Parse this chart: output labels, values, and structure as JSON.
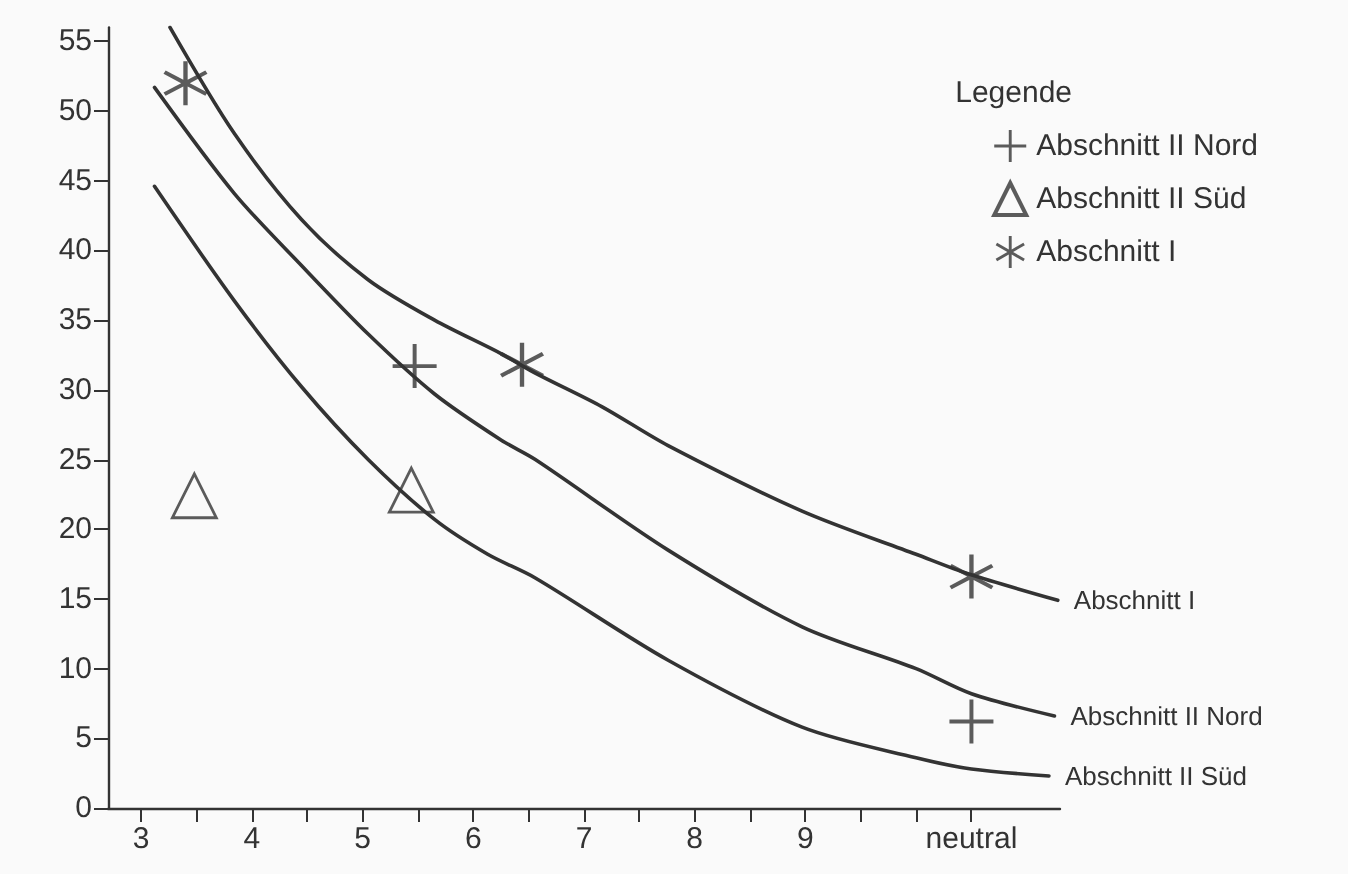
{
  "chart_data": {
    "type": "scatter",
    "legend_title": "Legende",
    "legend": "top right",
    "grid": false,
    "xlim": [
      2.7,
      11.3
    ],
    "ylim": [
      0,
      56
    ],
    "xticks": [
      3,
      {
        "value": 3.5,
        "label": null
      },
      4,
      {
        "value": 4.5,
        "label": null
      },
      5,
      {
        "value": 5.5,
        "label": null
      },
      6,
      {
        "value": 6.5,
        "label": null
      },
      7,
      {
        "value": 7.5,
        "label": null
      },
      8,
      {
        "value": 8.5,
        "label": null
      },
      9,
      {
        "value": 9.5,
        "label": null
      },
      {
        "value": 10,
        "label": null
      },
      {
        "value": 10.5,
        "label": "neutral"
      }
    ],
    "yticks": [
      0,
      5,
      10,
      15,
      20,
      25,
      30,
      35,
      40,
      45,
      50,
      55
    ],
    "series": [
      {
        "name": "Abschnitt II Nord",
        "marker": "cross",
        "color": "#333333",
        "x": [
          5.47,
          10.5
        ],
        "values": [
          31.7,
          6.2
        ]
      },
      {
        "name": "Abschnitt II Süd",
        "marker": "triangle",
        "color": "#333333",
        "x": [
          3.48,
          5.44
        ],
        "values": [
          22.4,
          22.8
        ]
      },
      {
        "name": "Abschnitt I",
        "marker": "star",
        "color": "#333333",
        "x": [
          3.4,
          6.44,
          10.5
        ],
        "values": [
          52,
          31.8,
          16.6
        ]
      },
      {
        "name": "Abschnitt I",
        "type": "line",
        "marker": "none",
        "line_style": "solid",
        "color": "#333333",
        "x": [
          3.26,
          3.84,
          4.45,
          5.05,
          5.65,
          6.25,
          6.56,
          7.16,
          7.76,
          8.97,
          10.0,
          10.47,
          11.28
        ],
        "values": [
          56.0,
          48.4,
          42.2,
          37.9,
          35.0,
          32.6,
          31.2,
          28.8,
          26.0,
          21.3,
          18.2,
          16.8,
          14.9
        ]
      },
      {
        "name": "Abschnitt II Nord",
        "type": "line",
        "marker": "none",
        "line_style": "solid",
        "color": "#333333",
        "x": [
          3.12,
          3.84,
          4.45,
          5.05,
          5.65,
          6.25,
          6.56,
          7.76,
          8.97,
          10.0,
          10.5,
          11.25
        ],
        "values": [
          51.7,
          44.1,
          38.9,
          34.0,
          29.7,
          26.4,
          25.0,
          18.5,
          13.0,
          10.0,
          8.2,
          6.6
        ]
      },
      {
        "name": "Abschnitt II Süd",
        "type": "line",
        "marker": "none",
        "line_style": "solid",
        "color": "#333333",
        "x": [
          3.12,
          3.84,
          4.45,
          5.05,
          5.65,
          6.13,
          6.56,
          7.76,
          8.97,
          10.0,
          10.5,
          11.2
        ],
        "values": [
          44.6,
          36.4,
          30.2,
          25.0,
          20.7,
          18.2,
          16.5,
          10.6,
          5.8,
          3.6,
          2.8,
          2.3
        ]
      }
    ]
  }
}
